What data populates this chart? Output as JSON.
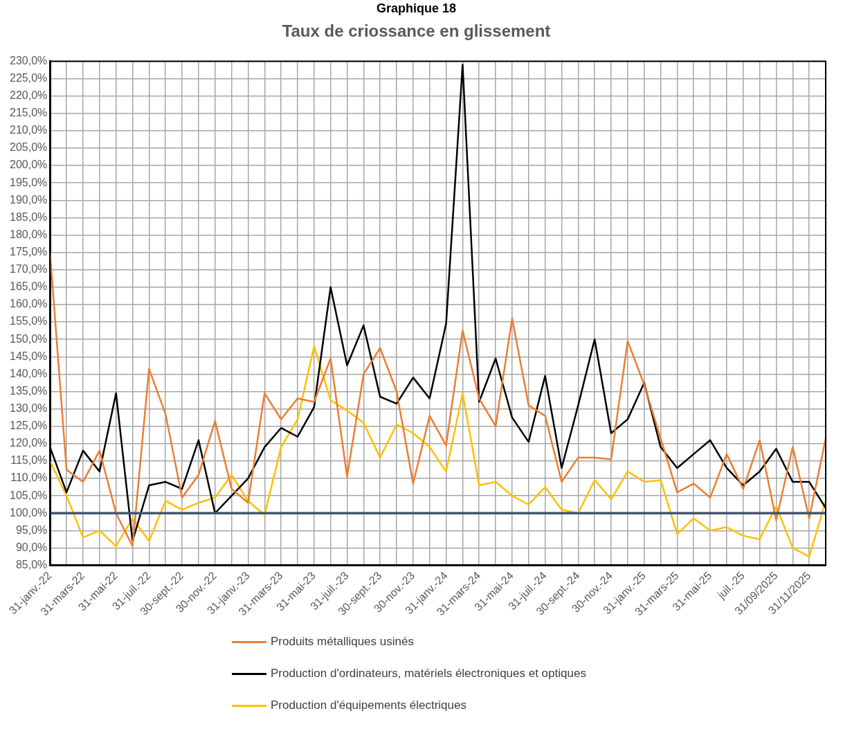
{
  "chart_data": {
    "type": "line",
    "title": "Graphique 18",
    "subtitle": "Taux de criossance en glissement",
    "categories": [
      "31-janv.-22",
      null,
      "31-mars-22",
      null,
      "31-mai-22",
      null,
      "31-juil.-22",
      null,
      "30-sept.-22",
      null,
      "30-nov.-22",
      null,
      "31-janv.-23",
      null,
      "31-mars-23",
      null,
      "31-mai-23",
      null,
      "31-juil.-23",
      null,
      "30-sept.-23",
      null,
      "30-nov.-23",
      null,
      "31-janv.-24",
      null,
      "31-mars-24",
      null,
      "31-mai-24",
      null,
      "31-juil.-24",
      null,
      "30-sept.-24",
      null,
      "30-nov.-24",
      null,
      "31-janv.-25",
      null,
      "31-mars-25",
      null,
      "31-mai-25",
      null,
      "juil.-25",
      null,
      "31/09/2025",
      null,
      "31/11/2025",
      null
    ],
    "series": [
      {
        "name": "Produits métalliques usinés",
        "color": "#ed7d31",
        "values": [
          175,
          112.5,
          109,
          118,
          100,
          90.5,
          141.5,
          128.5,
          104.5,
          111,
          126.5,
          107,
          103,
          134.5,
          127,
          133,
          132,
          144.5,
          110.5,
          140,
          147.5,
          135,
          108.5,
          128,
          119.5,
          152.5,
          133,
          125,
          156,
          131,
          128,
          109,
          116,
          116,
          115.5,
          149.5,
          137,
          121.5,
          106,
          108.5,
          104.5,
          117,
          107,
          121,
          98,
          119,
          98.5,
          121.5
        ]
      },
      {
        "name": "Production d'ordinateurs, matériels électroniques et optiques",
        "color": "#000000",
        "values": [
          119,
          106,
          118,
          112,
          134.5,
          92,
          108,
          109,
          107,
          121,
          100,
          105,
          110,
          119,
          124.5,
          122,
          130.5,
          165,
          142.5,
          154,
          133.5,
          131.5,
          139,
          133,
          154.5,
          229,
          132,
          144.5,
          127.5,
          120.5,
          139.5,
          113,
          131,
          150,
          123,
          127,
          137.5,
          119,
          113,
          117,
          121,
          113,
          108,
          112,
          118.5,
          109,
          109,
          101.5
        ]
      },
      {
        "name": "Production d'équipements électriques",
        "color": "#ffc000",
        "values": [
          115,
          105,
          93,
          95,
          90.5,
          98.5,
          92,
          103.5,
          101,
          103,
          104.5,
          111,
          103.5,
          99.5,
          119,
          127,
          148,
          132.5,
          129.5,
          126,
          116,
          125.5,
          123,
          119,
          112,
          134.5,
          108,
          109,
          105,
          102.5,
          107.5,
          101,
          100,
          109.5,
          104,
          112,
          109,
          109.5,
          94,
          98.5,
          95,
          96,
          93.5,
          92.5,
          102,
          90,
          87.5,
          103.5
        ]
      }
    ],
    "ylim": [
      85,
      230
    ],
    "yticks": [
      {
        "value": 85,
        "label": "85,0%"
      },
      {
        "value": 90,
        "label": "90,0%"
      },
      {
        "value": 95,
        "label": "95,0%"
      },
      {
        "value": 100,
        "label": "100,0%"
      },
      {
        "value": 105,
        "label": "105,0%"
      },
      {
        "value": 110,
        "label": "110,0%"
      },
      {
        "value": 115,
        "label": "115,0%"
      },
      {
        "value": 120,
        "label": "120,0%"
      },
      {
        "value": 125,
        "label": "125,0%"
      },
      {
        "value": 130,
        "label": "130,0%"
      },
      {
        "value": 135,
        "label": "135,0%"
      },
      {
        "value": 140,
        "label": "140,0%"
      },
      {
        "value": 145,
        "label": "145,0%"
      },
      {
        "value": 150,
        "label": "150,0%"
      },
      {
        "value": 155,
        "label": "155,0%"
      },
      {
        "value": 160,
        "label": "160,0%"
      },
      {
        "value": 165,
        "label": "165,0%"
      },
      {
        "value": 170,
        "label": "170,0%"
      },
      {
        "value": 175,
        "label": "175,0%"
      },
      {
        "value": 180,
        "label": "180,0%"
      },
      {
        "value": 185,
        "label": "185,0%"
      },
      {
        "value": 190,
        "label": "190,0%"
      },
      {
        "value": 195,
        "label": "195,0%"
      },
      {
        "value": 200,
        "label": "200,0%"
      },
      {
        "value": 205,
        "label": "205,0%"
      },
      {
        "value": 210,
        "label": "210,0%"
      },
      {
        "value": 215,
        "label": "215,0%"
      },
      {
        "value": 220,
        "label": "220,0%"
      },
      {
        "value": 225,
        "label": "225,0%"
      },
      {
        "value": 230,
        "label": "230,0%"
      }
    ],
    "ref_lines": [
      {
        "axis": "y",
        "value": 100,
        "color": "#44546a"
      }
    ],
    "grid": true,
    "legend": "bottom",
    "marker": "none",
    "line_style": "solid"
  }
}
